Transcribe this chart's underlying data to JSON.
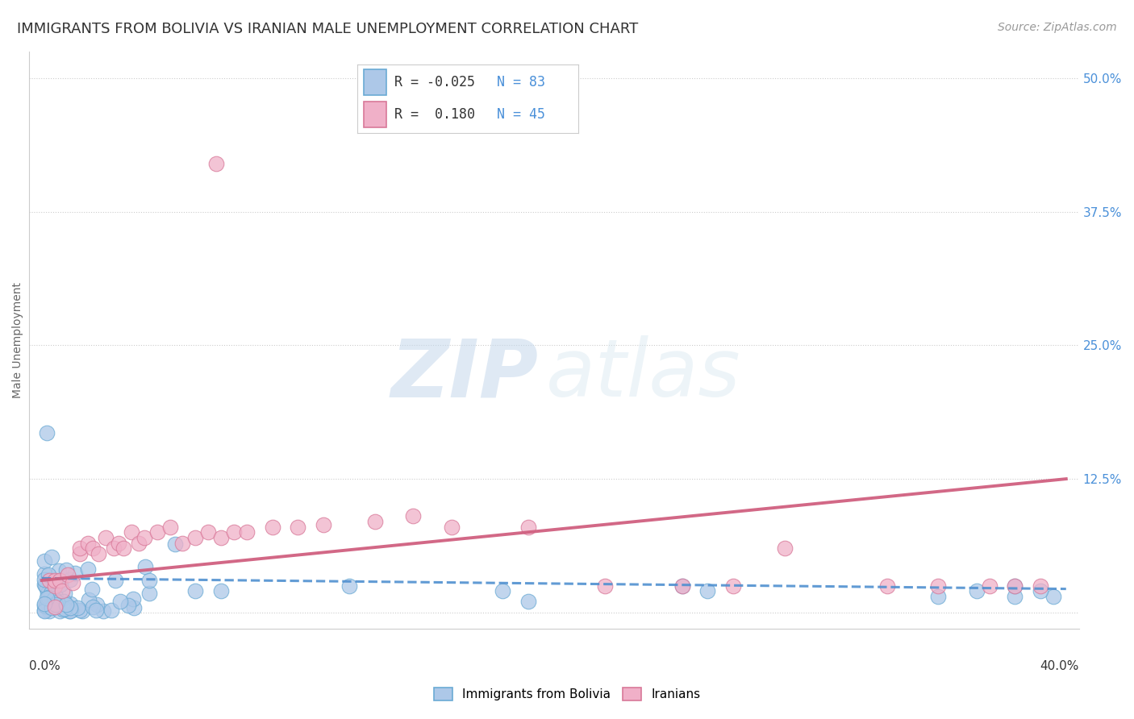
{
  "title": "IMMIGRANTS FROM BOLIVIA VS IRANIAN MALE UNEMPLOYMENT CORRELATION CHART",
  "source": "Source: ZipAtlas.com",
  "ylabel": "Male Unemployment",
  "xlim": [
    -0.005,
    0.405
  ],
  "ylim": [
    -0.015,
    0.525
  ],
  "blue_color": "#adc8e8",
  "blue_edge_color": "#6aaad4",
  "pink_color": "#f0b0c8",
  "pink_edge_color": "#d87898",
  "blue_line_color": "#5090d0",
  "pink_line_color": "#d06080",
  "legend_blue_r": "-0.025",
  "legend_blue_n": "83",
  "legend_pink_r": "0.180",
  "legend_pink_n": "45",
  "legend_label_blue": "Immigrants from Bolivia",
  "legend_label_pink": "Iranians",
  "watermark_zip": "ZIP",
  "watermark_atlas": "atlas",
  "title_fontsize": 13,
  "source_fontsize": 10,
  "axis_label_fontsize": 10,
  "tick_fontsize": 11,
  "blue_trend_x": [
    0.0,
    0.4
  ],
  "blue_trend_y": [
    0.032,
    0.022
  ],
  "pink_trend_x": [
    0.0,
    0.4
  ],
  "pink_trend_y": [
    0.03,
    0.125
  ]
}
